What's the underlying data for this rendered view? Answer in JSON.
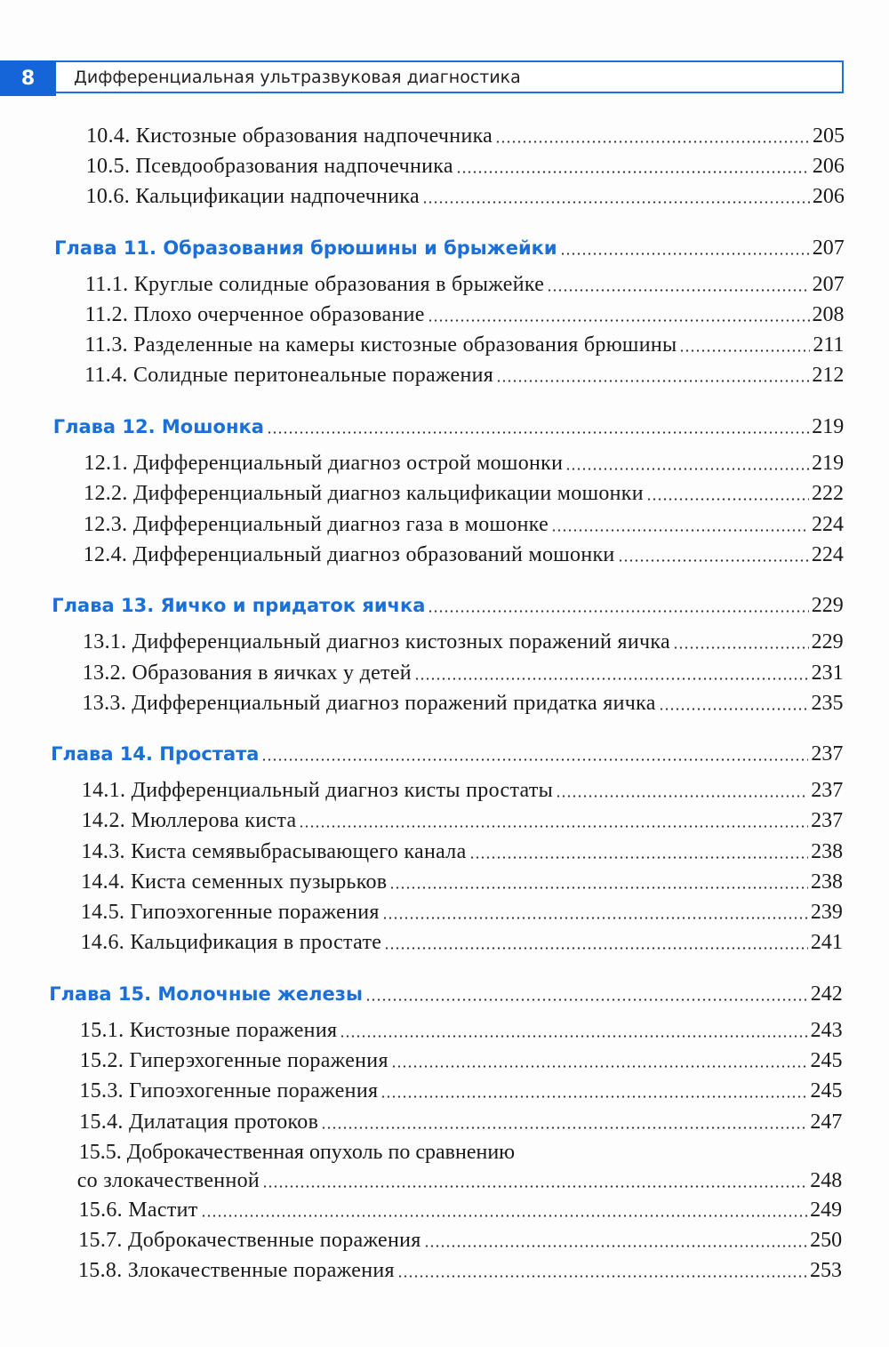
{
  "header": {
    "page_number": "8",
    "title": "Дифференциальная ультразвуковая диагностика",
    "accent_color": "#1466d8"
  },
  "entries": [
    {
      "type": "sub",
      "label": "10.4. Кистозные образования надпочечника",
      "page": "205"
    },
    {
      "type": "sub",
      "label": "10.5. Псевдообразования надпочечника",
      "page": "206"
    },
    {
      "type": "sub",
      "label": "10.6. Кальцификации надпочечника",
      "page": "206"
    },
    {
      "type": "chapter",
      "label": "Глава 11. Образования брюшины и брыжейки",
      "page": "207"
    },
    {
      "type": "sub",
      "label": "11.1. Круглые солидные образования в брыжейке",
      "page": "207"
    },
    {
      "type": "sub",
      "label": "11.2. Плохо очерченное образование",
      "page": "208"
    },
    {
      "type": "sub",
      "label": "11.3. Разделенные на камеры кистозные образования брюшины",
      "page": "211"
    },
    {
      "type": "sub",
      "label": "11.4. Солидные перитонеальные поражения",
      "page": "212"
    },
    {
      "type": "chapter",
      "label": "Глава 12. Мошонка",
      "page": "219"
    },
    {
      "type": "sub",
      "label": "12.1. Дифференциальный диагноз острой мошонки",
      "page": "219"
    },
    {
      "type": "sub",
      "label": "12.2. Дифференциальный диагноз кальцификации мошонки",
      "page": "222"
    },
    {
      "type": "sub",
      "label": "12.3. Дифференциальный диагноз газа в мошонке",
      "page": "224"
    },
    {
      "type": "sub",
      "label": "12.4. Дифференциальный диагноз образований мошонки",
      "page": "224"
    },
    {
      "type": "chapter",
      "label": "Глава 13. Яичко и придаток яичка",
      "page": "229"
    },
    {
      "type": "sub",
      "label": "13.1. Дифференциальный диагноз кистозных поражений яичка",
      "page": "229"
    },
    {
      "type": "sub",
      "label": "13.2. Образования в яичках у детей",
      "page": "231"
    },
    {
      "type": "sub",
      "label": "13.3. Дифференциальный диагноз поражений придатка яичка",
      "page": "235"
    },
    {
      "type": "chapter",
      "label": "Глава 14. Простата",
      "page": "237"
    },
    {
      "type": "sub",
      "label": "14.1. Дифференциальный диагноз кисты простаты",
      "page": "237"
    },
    {
      "type": "sub",
      "label": "14.2. Мюллерова киста",
      "page": "237"
    },
    {
      "type": "sub",
      "label": "14.3. Киста семявыбрасывающего канала",
      "page": "238"
    },
    {
      "type": "sub",
      "label": "14.4. Киста семенных пузырьков",
      "page": "238"
    },
    {
      "type": "sub",
      "label": "14.5. Гипоэхогенные поражения",
      "page": "239"
    },
    {
      "type": "sub",
      "label": "14.6. Кальцификация в простате",
      "page": "241"
    },
    {
      "type": "chapter",
      "label": "Глава 15. Молочные железы",
      "page": "242"
    },
    {
      "type": "sub",
      "label": "15.1. Кистозные поражения",
      "page": "243"
    },
    {
      "type": "sub",
      "label": "15.2. Гиперэхогенные поражения",
      "page": "245"
    },
    {
      "type": "sub",
      "label": "15.3. Гипоэхогенные поражения",
      "page": "245"
    },
    {
      "type": "sub",
      "label": "15.4. Дилатация протоков",
      "page": "247"
    },
    {
      "type": "sub",
      "label_first_line": "15.5. Доброкачественная опухоль по сравнению",
      "label": "со злокачественной",
      "page": "248"
    },
    {
      "type": "sub",
      "label": "15.6. Мастит",
      "page": "249"
    },
    {
      "type": "sub",
      "label": "15.7. Доброкачественные поражения",
      "page": "250"
    },
    {
      "type": "sub",
      "label": "15.8. Злокачественные поражения",
      "page": "253"
    }
  ]
}
